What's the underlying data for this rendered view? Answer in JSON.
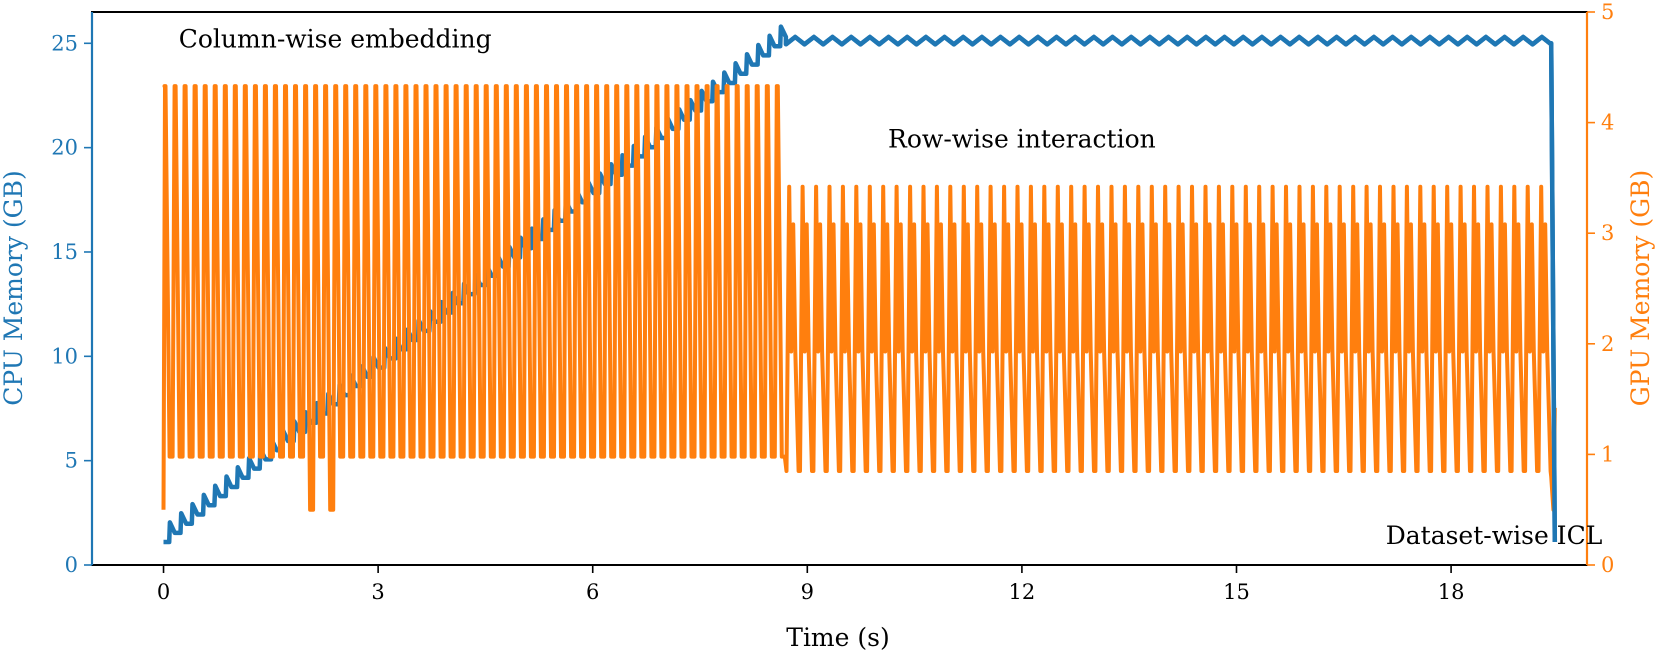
{
  "chart_data": {
    "type": "line",
    "title": "",
    "xlabel": "Time (s)",
    "xlim": [
      -1,
      19.9
    ],
    "x_ticks": [
      0,
      3,
      6,
      9,
      12,
      15,
      18
    ],
    "x_tick_labels": [
      "0",
      "3",
      "6",
      "9",
      "12",
      "15",
      "18"
    ],
    "y_left": {
      "label": "CPU Memory (GB)",
      "lim": [
        0,
        26.5
      ],
      "ticks": [
        0,
        5,
        10,
        15,
        20,
        25
      ],
      "tick_labels": [
        "0",
        "5",
        "10",
        "15",
        "20",
        "25"
      ],
      "color": "#1f77b4"
    },
    "y_right": {
      "label": "GPU Memory (GB)",
      "lim": [
        0,
        5
      ],
      "ticks": [
        0,
        1,
        2,
        3,
        4,
        5
      ],
      "tick_labels": [
        "0",
        "1",
        "2",
        "3",
        "4",
        "5"
      ],
      "color": "#ff7f0e"
    },
    "annotations": [
      {
        "text": "Column-wise embedding",
        "x": 2.4,
        "y": 24.8
      },
      {
        "text": "Row-wise interaction",
        "x": 12.0,
        "y": 20.0
      },
      {
        "text": "Dataset-wise ICL",
        "x": 18.6,
        "y": 1.0
      }
    ],
    "series": [
      {
        "name": "CPU Memory",
        "axis": "left",
        "color": "#1f77b4",
        "phases": [
          {
            "phase": "Column-wise embedding",
            "t_start": 0.0,
            "t_end": 8.7,
            "value_start_gb": 1.1,
            "value_end_gb": 25.3,
            "pattern": "staircase ramp with small per-batch dips"
          },
          {
            "phase": "Row-wise interaction",
            "t_start": 8.7,
            "t_end": 19.4,
            "value_gb": 25.0,
            "ripple_gb": 0.3
          },
          {
            "phase": "Dataset-wise ICL",
            "t_start": 19.4,
            "t_end": 19.45,
            "value_start_gb": 25.0,
            "value_end_gb": 1.1
          }
        ]
      },
      {
        "name": "GPU Memory",
        "axis": "right",
        "color": "#ff7f0e",
        "phases": [
          {
            "phase": "Column-wise embedding",
            "t_start": 0.0,
            "t_end": 8.7,
            "oscillation_low_gb": 0.98,
            "oscillation_high_gb": 4.33,
            "cycles": 62,
            "occasional_low_gb": 0.5
          },
          {
            "phase": "Row-wise interaction",
            "t_start": 8.7,
            "t_end": 19.4,
            "levels_gb": [
              3.42,
              3.08,
              1.93,
              0.85
            ],
            "cycles": 57
          },
          {
            "phase": "Dataset-wise ICL",
            "t_start": 19.4,
            "t_end": 19.45,
            "levels_gb": [
              0.8,
              0.5,
              1.42
            ]
          }
        ]
      }
    ]
  }
}
